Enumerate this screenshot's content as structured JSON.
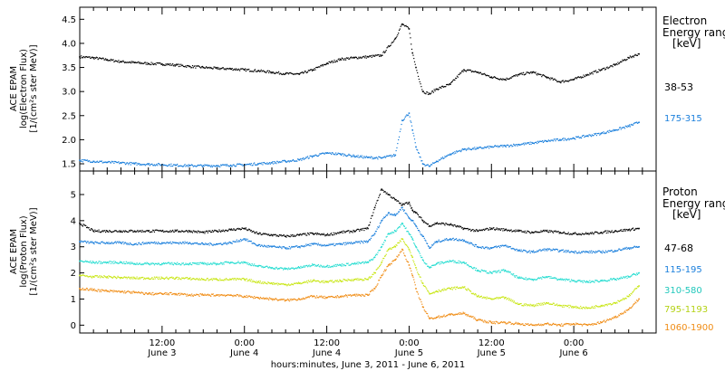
{
  "chart_data": [
    {
      "type": "scatter",
      "panel": "electron",
      "ylabel_lines": [
        "ACE EPAM",
        "log(Electron Flux)",
        "[1/(cm²s ster MeV)]"
      ],
      "ylim": [
        1.35,
        4.75
      ],
      "yticks": [
        "1.5",
        "2.0",
        "2.5",
        "3.0",
        "3.5",
        "4.0",
        "4.5"
      ],
      "legend_title": [
        "Electron",
        "Energy ranges",
        "[keV]"
      ],
      "x_hours": [
        0,
        2,
        4,
        6,
        8,
        10,
        12,
        14,
        16,
        18,
        20,
        22,
        24,
        26,
        28,
        30,
        32,
        34,
        36,
        38,
        40,
        42,
        44,
        46,
        47,
        48,
        48.5,
        49,
        50,
        51,
        52,
        54,
        56,
        58,
        60,
        62,
        64,
        66,
        68,
        70,
        72,
        74,
        76,
        78,
        80,
        81.5
      ],
      "series": [
        {
          "name": "38-53",
          "color": "#000000",
          "values": [
            3.72,
            3.7,
            3.66,
            3.62,
            3.6,
            3.58,
            3.57,
            3.55,
            3.52,
            3.5,
            3.48,
            3.47,
            3.45,
            3.43,
            3.4,
            3.37,
            3.36,
            3.45,
            3.58,
            3.67,
            3.7,
            3.72,
            3.75,
            4.1,
            4.4,
            4.3,
            3.8,
            3.5,
            3.0,
            2.95,
            3.05,
            3.15,
            3.45,
            3.4,
            3.3,
            3.25,
            3.35,
            3.4,
            3.3,
            3.2,
            3.25,
            3.35,
            3.45,
            3.55,
            3.7,
            3.78
          ]
        },
        {
          "name": "175-315",
          "color": "#1a7fdc",
          "values": [
            1.57,
            1.55,
            1.53,
            1.52,
            1.5,
            1.49,
            1.48,
            1.47,
            1.46,
            1.46,
            1.46,
            1.47,
            1.48,
            1.5,
            1.52,
            1.55,
            1.58,
            1.66,
            1.72,
            1.7,
            1.66,
            1.63,
            1.62,
            1.68,
            2.4,
            2.55,
            2.2,
            1.85,
            1.5,
            1.45,
            1.55,
            1.7,
            1.8,
            1.82,
            1.85,
            1.87,
            1.9,
            1.93,
            1.97,
            2.0,
            2.03,
            2.08,
            2.13,
            2.2,
            2.28,
            2.36
          ]
        }
      ]
    },
    {
      "type": "scatter",
      "panel": "proton",
      "ylabel_lines": [
        "ACE EPAM",
        "log(Proton Flux)",
        "[1/(cm²s ster MeV)]"
      ],
      "ylim": [
        -0.3,
        5.9
      ],
      "yticks": [
        "0",
        "1",
        "2",
        "3",
        "4",
        "5"
      ],
      "legend_title": [
        "Proton",
        "Energy ranges",
        "[keV]"
      ],
      "xlabel": "hours:minutes, June  3, 2011 - June  6, 2011",
      "xticks": [
        {
          "top": "12:00",
          "bottom": "June 3",
          "hour": 12
        },
        {
          "top": "0:00",
          "bottom": "June 4",
          "hour": 24
        },
        {
          "top": "12:00",
          "bottom": "June 4",
          "hour": 36
        },
        {
          "top": "0:00",
          "bottom": "June 5",
          "hour": 48
        },
        {
          "top": "12:00",
          "bottom": "June 5",
          "hour": 60
        },
        {
          "top": "0:00",
          "bottom": "June 6",
          "hour": 72
        }
      ],
      "xlim": [
        0,
        84
      ],
      "x_hours": [
        0,
        2,
        4,
        6,
        8,
        10,
        12,
        14,
        16,
        18,
        20,
        22,
        24,
        26,
        28,
        30,
        32,
        34,
        36,
        38,
        40,
        42,
        43,
        44,
        45,
        46,
        47,
        48,
        48.5,
        49,
        50,
        51,
        52,
        54,
        56,
        58,
        60,
        62,
        64,
        66,
        68,
        70,
        72,
        74,
        76,
        78,
        80,
        81.5
      ],
      "series": [
        {
          "name": "47-68",
          "color": "#000000",
          "values": [
            3.9,
            3.6,
            3.6,
            3.6,
            3.6,
            3.6,
            3.6,
            3.6,
            3.6,
            3.55,
            3.6,
            3.65,
            3.7,
            3.5,
            3.45,
            3.4,
            3.45,
            3.5,
            3.45,
            3.55,
            3.6,
            3.7,
            4.5,
            5.2,
            5.0,
            4.8,
            4.6,
            4.7,
            4.4,
            4.3,
            4.0,
            3.8,
            3.9,
            3.85,
            3.7,
            3.6,
            3.7,
            3.65,
            3.6,
            3.55,
            3.6,
            3.55,
            3.5,
            3.5,
            3.55,
            3.6,
            3.65,
            3.7
          ]
        },
        {
          "name": "115-195",
          "color": "#1a7fdc",
          "values": [
            3.2,
            3.15,
            3.15,
            3.15,
            3.1,
            3.15,
            3.15,
            3.15,
            3.15,
            3.1,
            3.1,
            3.15,
            3.3,
            3.05,
            3.0,
            2.95,
            3.0,
            3.1,
            3.05,
            3.1,
            3.15,
            3.2,
            3.5,
            4.0,
            4.3,
            4.2,
            4.5,
            4.1,
            4.0,
            3.8,
            3.4,
            2.95,
            3.2,
            3.3,
            3.25,
            3.0,
            2.95,
            3.05,
            2.85,
            2.8,
            2.9,
            2.85,
            2.8,
            2.8,
            2.8,
            2.85,
            2.95,
            3.0
          ]
        },
        {
          "name": "310-580",
          "color": "#22dcd0",
          "values": [
            2.45,
            2.4,
            2.4,
            2.4,
            2.35,
            2.35,
            2.35,
            2.35,
            2.35,
            2.35,
            2.35,
            2.4,
            2.4,
            2.25,
            2.2,
            2.15,
            2.2,
            2.3,
            2.25,
            2.3,
            2.35,
            2.4,
            2.6,
            3.0,
            3.5,
            3.6,
            3.9,
            3.5,
            3.3,
            3.0,
            2.5,
            2.2,
            2.35,
            2.45,
            2.4,
            2.1,
            2.0,
            2.1,
            1.8,
            1.75,
            1.85,
            1.75,
            1.7,
            1.65,
            1.7,
            1.75,
            1.85,
            2.0
          ]
        },
        {
          "name": "795-1193",
          "color": "#c8e614",
          "values": [
            1.9,
            1.85,
            1.85,
            1.82,
            1.8,
            1.8,
            1.8,
            1.8,
            1.78,
            1.75,
            1.75,
            1.75,
            1.75,
            1.65,
            1.6,
            1.55,
            1.6,
            1.7,
            1.65,
            1.7,
            1.75,
            1.75,
            2.0,
            2.4,
            2.9,
            3.0,
            3.3,
            2.9,
            2.6,
            2.2,
            1.6,
            1.2,
            1.3,
            1.4,
            1.45,
            1.1,
            1.0,
            1.05,
            0.8,
            0.75,
            0.85,
            0.75,
            0.7,
            0.65,
            0.75,
            0.85,
            1.1,
            1.5
          ]
        },
        {
          "name": "1060-1900",
          "color": "#f08c14",
          "values": [
            1.4,
            1.35,
            1.3,
            1.28,
            1.25,
            1.2,
            1.2,
            1.2,
            1.15,
            1.15,
            1.15,
            1.15,
            1.1,
            1.05,
            1.0,
            0.95,
            1.0,
            1.1,
            1.05,
            1.1,
            1.15,
            1.15,
            1.4,
            1.9,
            2.3,
            2.5,
            2.9,
            2.3,
            1.9,
            1.4,
            0.7,
            0.25,
            0.3,
            0.4,
            0.45,
            0.2,
            0.1,
            0.1,
            0.05,
            0.0,
            0.05,
            0.0,
            0.05,
            0.0,
            0.1,
            0.3,
            0.6,
            1.0
          ]
        }
      ]
    }
  ]
}
